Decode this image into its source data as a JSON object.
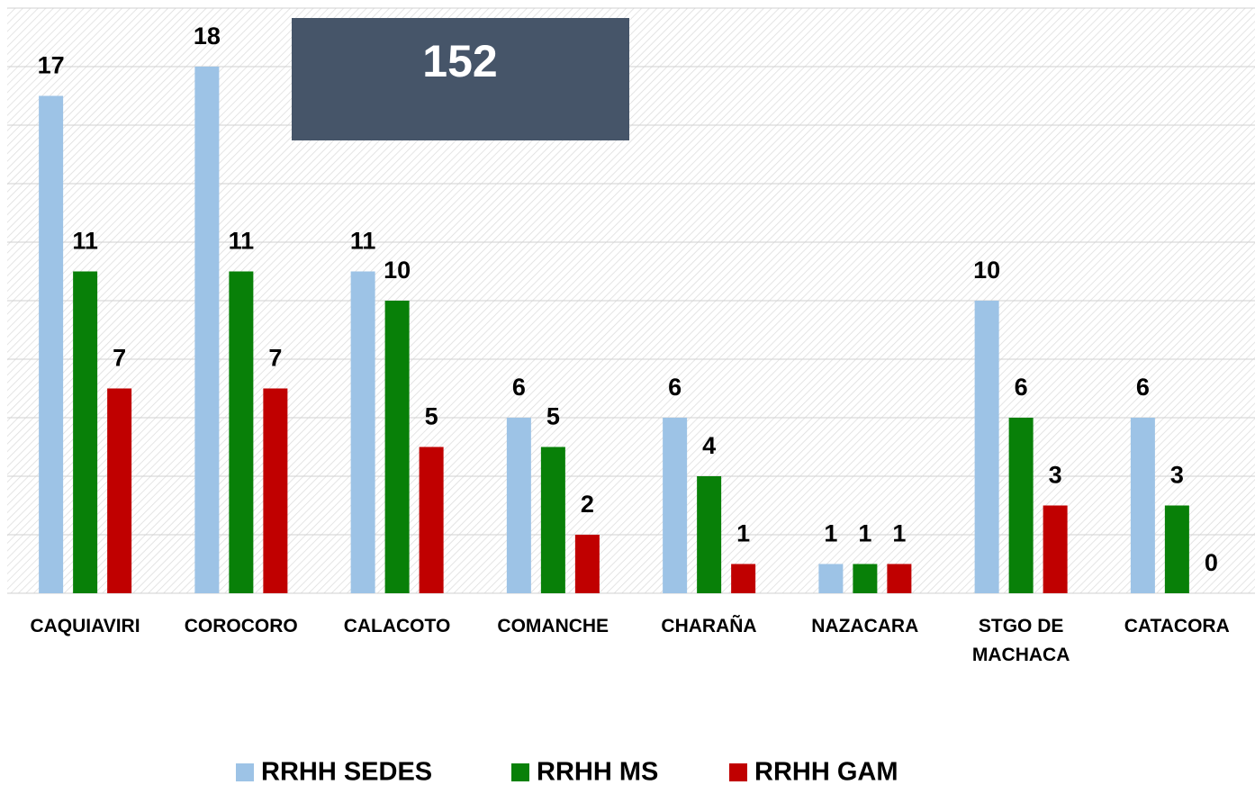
{
  "chart_data": {
    "type": "bar",
    "annotation": "152",
    "categories": [
      "CAQUIAVIRI",
      "COROCORO",
      "CALACOTO",
      "COMANCHE",
      "CHARAÑA",
      "NAZACARA",
      "STGO DE MACHACA",
      "CATACORA"
    ],
    "series": [
      {
        "name": "RRHH SEDES",
        "color": "#9dc3e6",
        "values": [
          17,
          18,
          11,
          6,
          6,
          1,
          10,
          6
        ]
      },
      {
        "name": "RRHH MS",
        "color": "#088008",
        "values": [
          11,
          11,
          10,
          5,
          4,
          1,
          6,
          3
        ]
      },
      {
        "name": "RRHH GAM",
        "color": "#c00000",
        "values": [
          7,
          7,
          5,
          2,
          1,
          1,
          3,
          0
        ]
      }
    ],
    "ylim": [
      0,
      20
    ],
    "yticks": [
      0,
      2,
      4,
      6,
      8,
      10,
      12,
      14,
      16,
      18,
      20
    ],
    "grid": true,
    "legend": "bottom"
  }
}
